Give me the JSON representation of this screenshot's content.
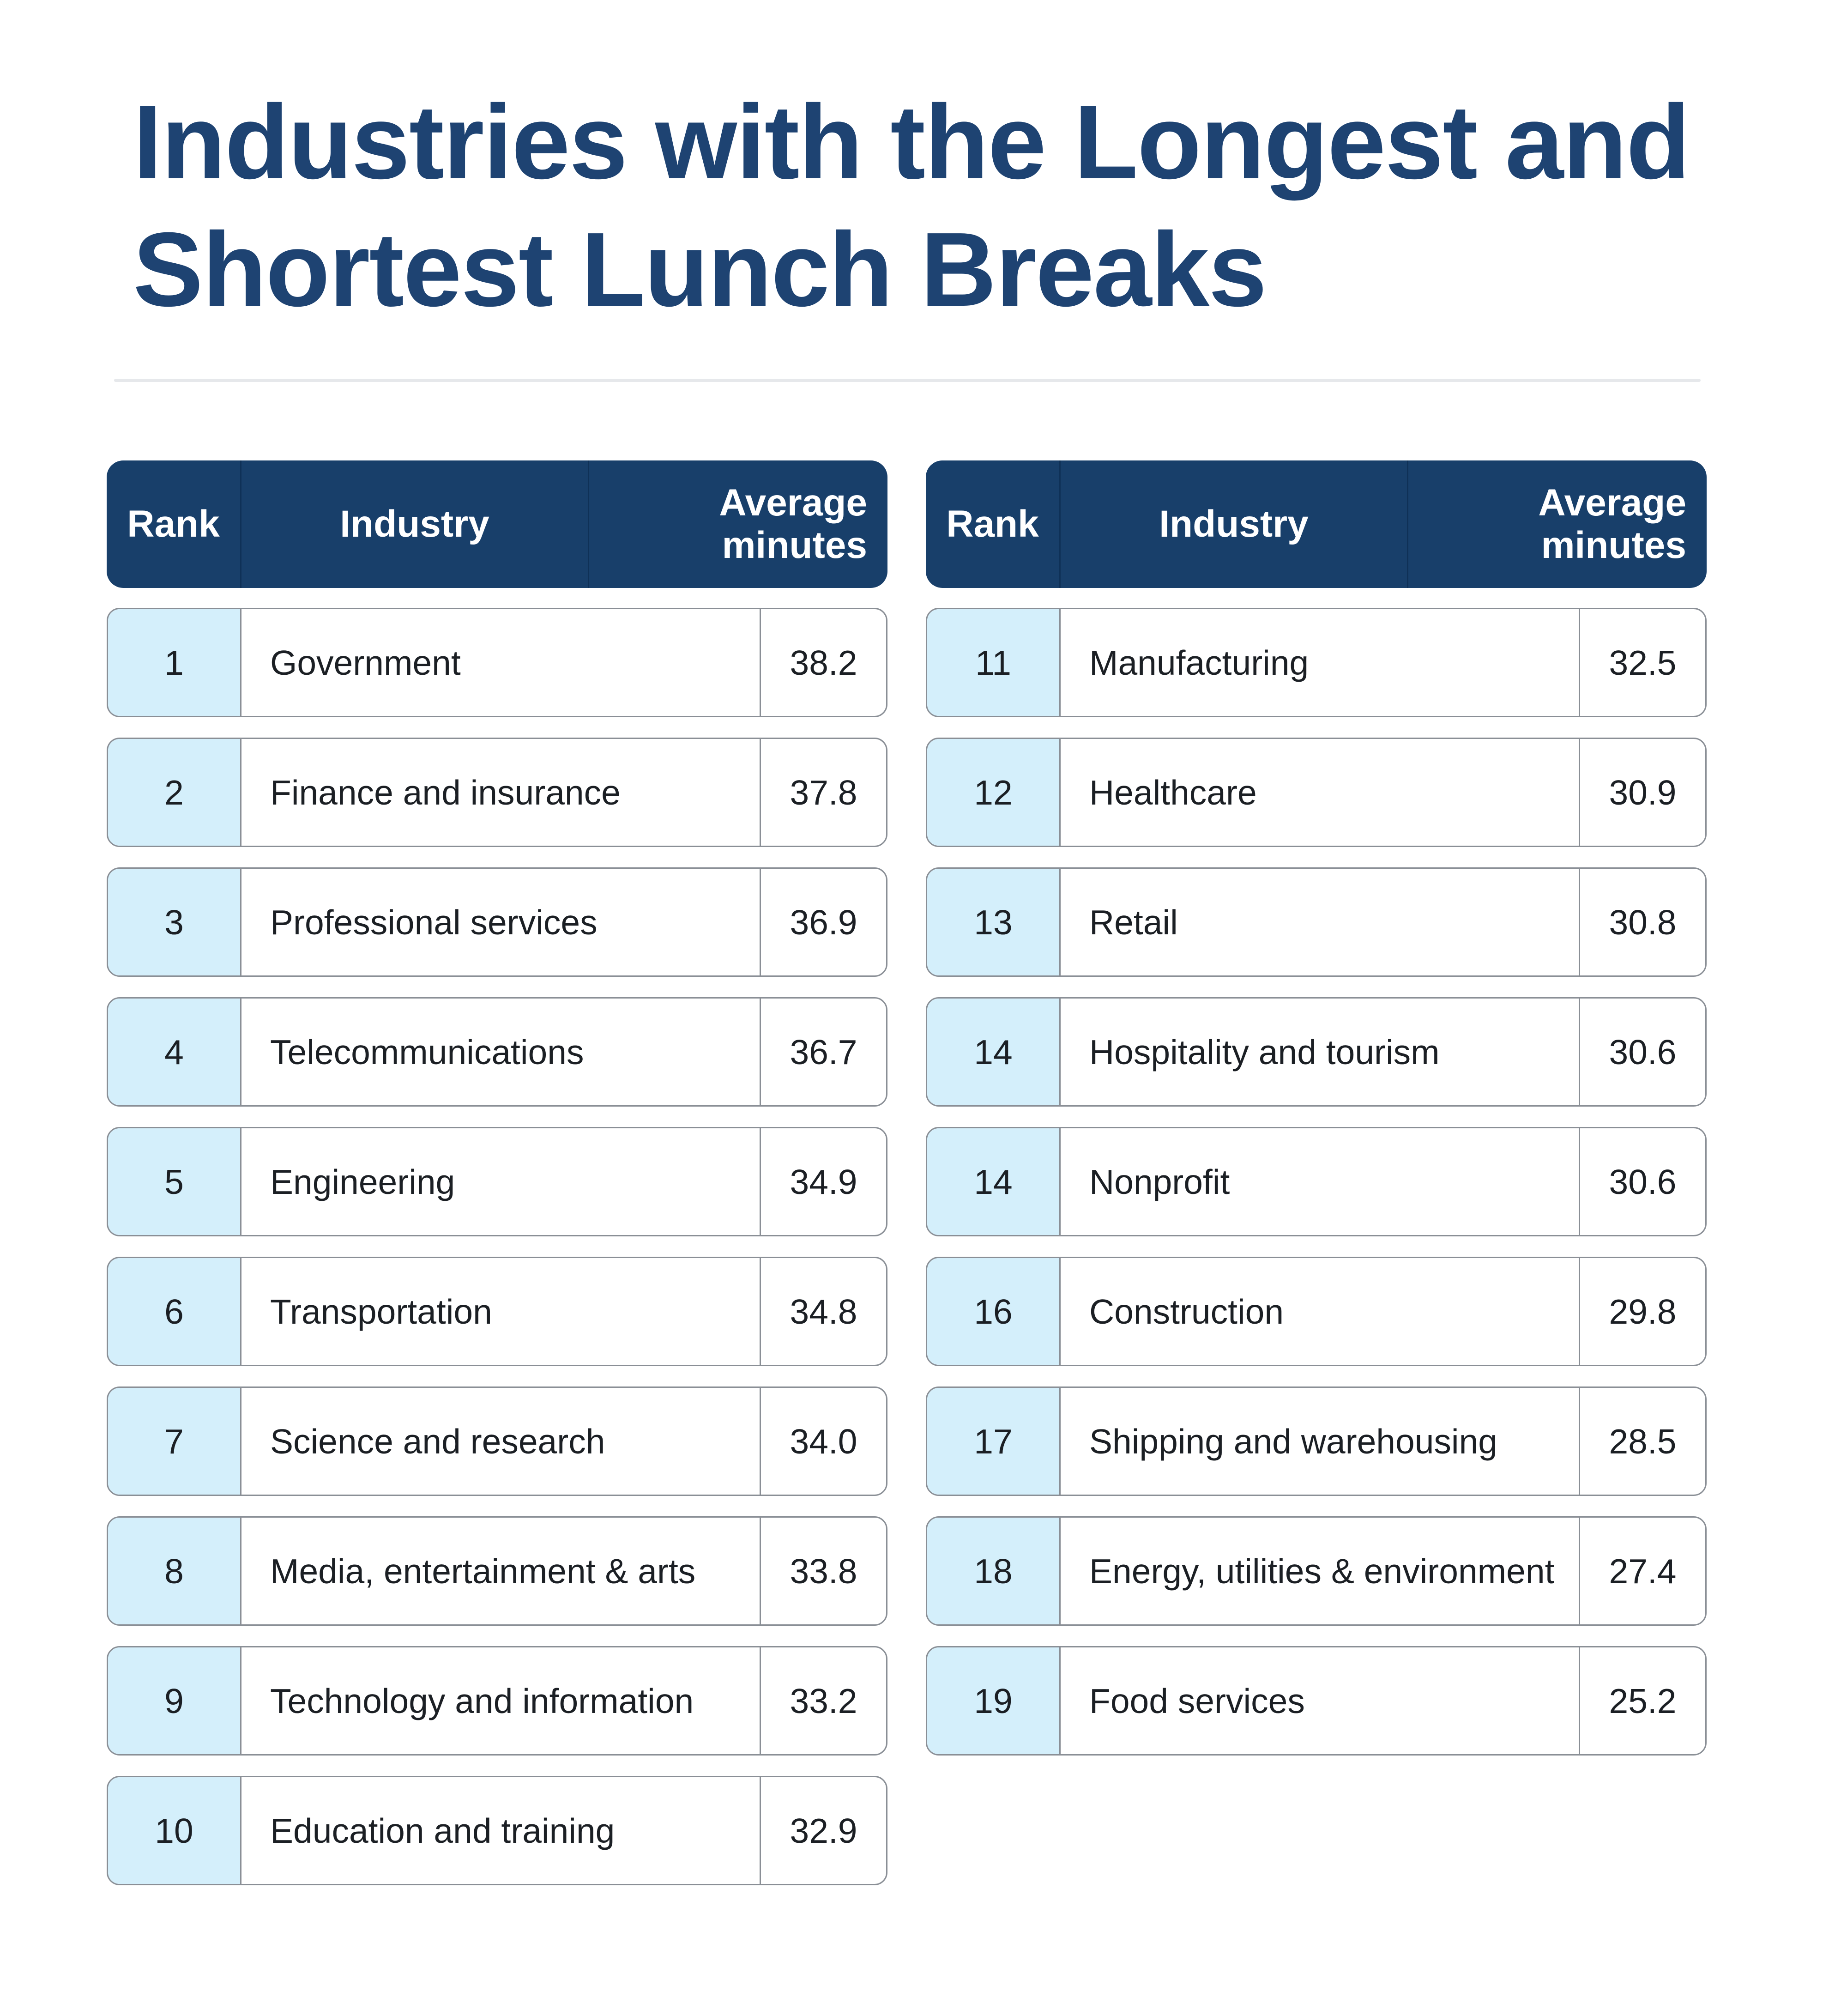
{
  "title": {
    "line1": "Industries with the Longest and",
    "line2": "Shortest Lunch Breaks"
  },
  "columns": {
    "rank": "Rank",
    "industry": "Industry",
    "avg_line1": "Average",
    "avg_line2": "minutes"
  },
  "colors": {
    "title": "#1e4372",
    "header_bg": "#183f6a",
    "rank_cell_bg": "#d4effb",
    "border": "#8a8f96"
  },
  "chart_data": {
    "type": "table",
    "title": "Industries with the Longest and Shortest Lunch Breaks",
    "columns": [
      "Rank",
      "Industry",
      "Average minutes"
    ],
    "tables": [
      {
        "rows": [
          {
            "rank": "1",
            "industry": "Government",
            "minutes": "38.2"
          },
          {
            "rank": "2",
            "industry": "Finance and insurance",
            "minutes": "37.8"
          },
          {
            "rank": "3",
            "industry": "Professional services",
            "minutes": "36.9"
          },
          {
            "rank": "4",
            "industry": "Telecommunications",
            "minutes": "36.7"
          },
          {
            "rank": "5",
            "industry": "Engineering",
            "minutes": "34.9"
          },
          {
            "rank": "6",
            "industry": "Transportation",
            "minutes": "34.8"
          },
          {
            "rank": "7",
            "industry": "Science and research",
            "minutes": "34.0"
          },
          {
            "rank": "8",
            "industry": "Media, entertainment & arts",
            "minutes": "33.8"
          },
          {
            "rank": "9",
            "industry": "Technology and information",
            "minutes": "33.2"
          },
          {
            "rank": "10",
            "industry": "Education and training",
            "minutes": "32.9"
          }
        ]
      },
      {
        "rows": [
          {
            "rank": "11",
            "industry": "Manufacturing",
            "minutes": "32.5"
          },
          {
            "rank": "12",
            "industry": "Healthcare",
            "minutes": "30.9"
          },
          {
            "rank": "13",
            "industry": "Retail",
            "minutes": "30.8"
          },
          {
            "rank": "14",
            "industry": "Hospitality and tourism",
            "minutes": "30.6"
          },
          {
            "rank": "14",
            "industry": "Nonprofit",
            "minutes": "30.6"
          },
          {
            "rank": "16",
            "industry": "Construction",
            "minutes": "29.8"
          },
          {
            "rank": "17",
            "industry": "Shipping and warehousing",
            "minutes": "28.5"
          },
          {
            "rank": "18",
            "industry": "Energy, utilities & environment",
            "minutes": "27.4"
          },
          {
            "rank": "19",
            "industry": "Food services",
            "minutes": "25.2"
          }
        ]
      }
    ]
  }
}
